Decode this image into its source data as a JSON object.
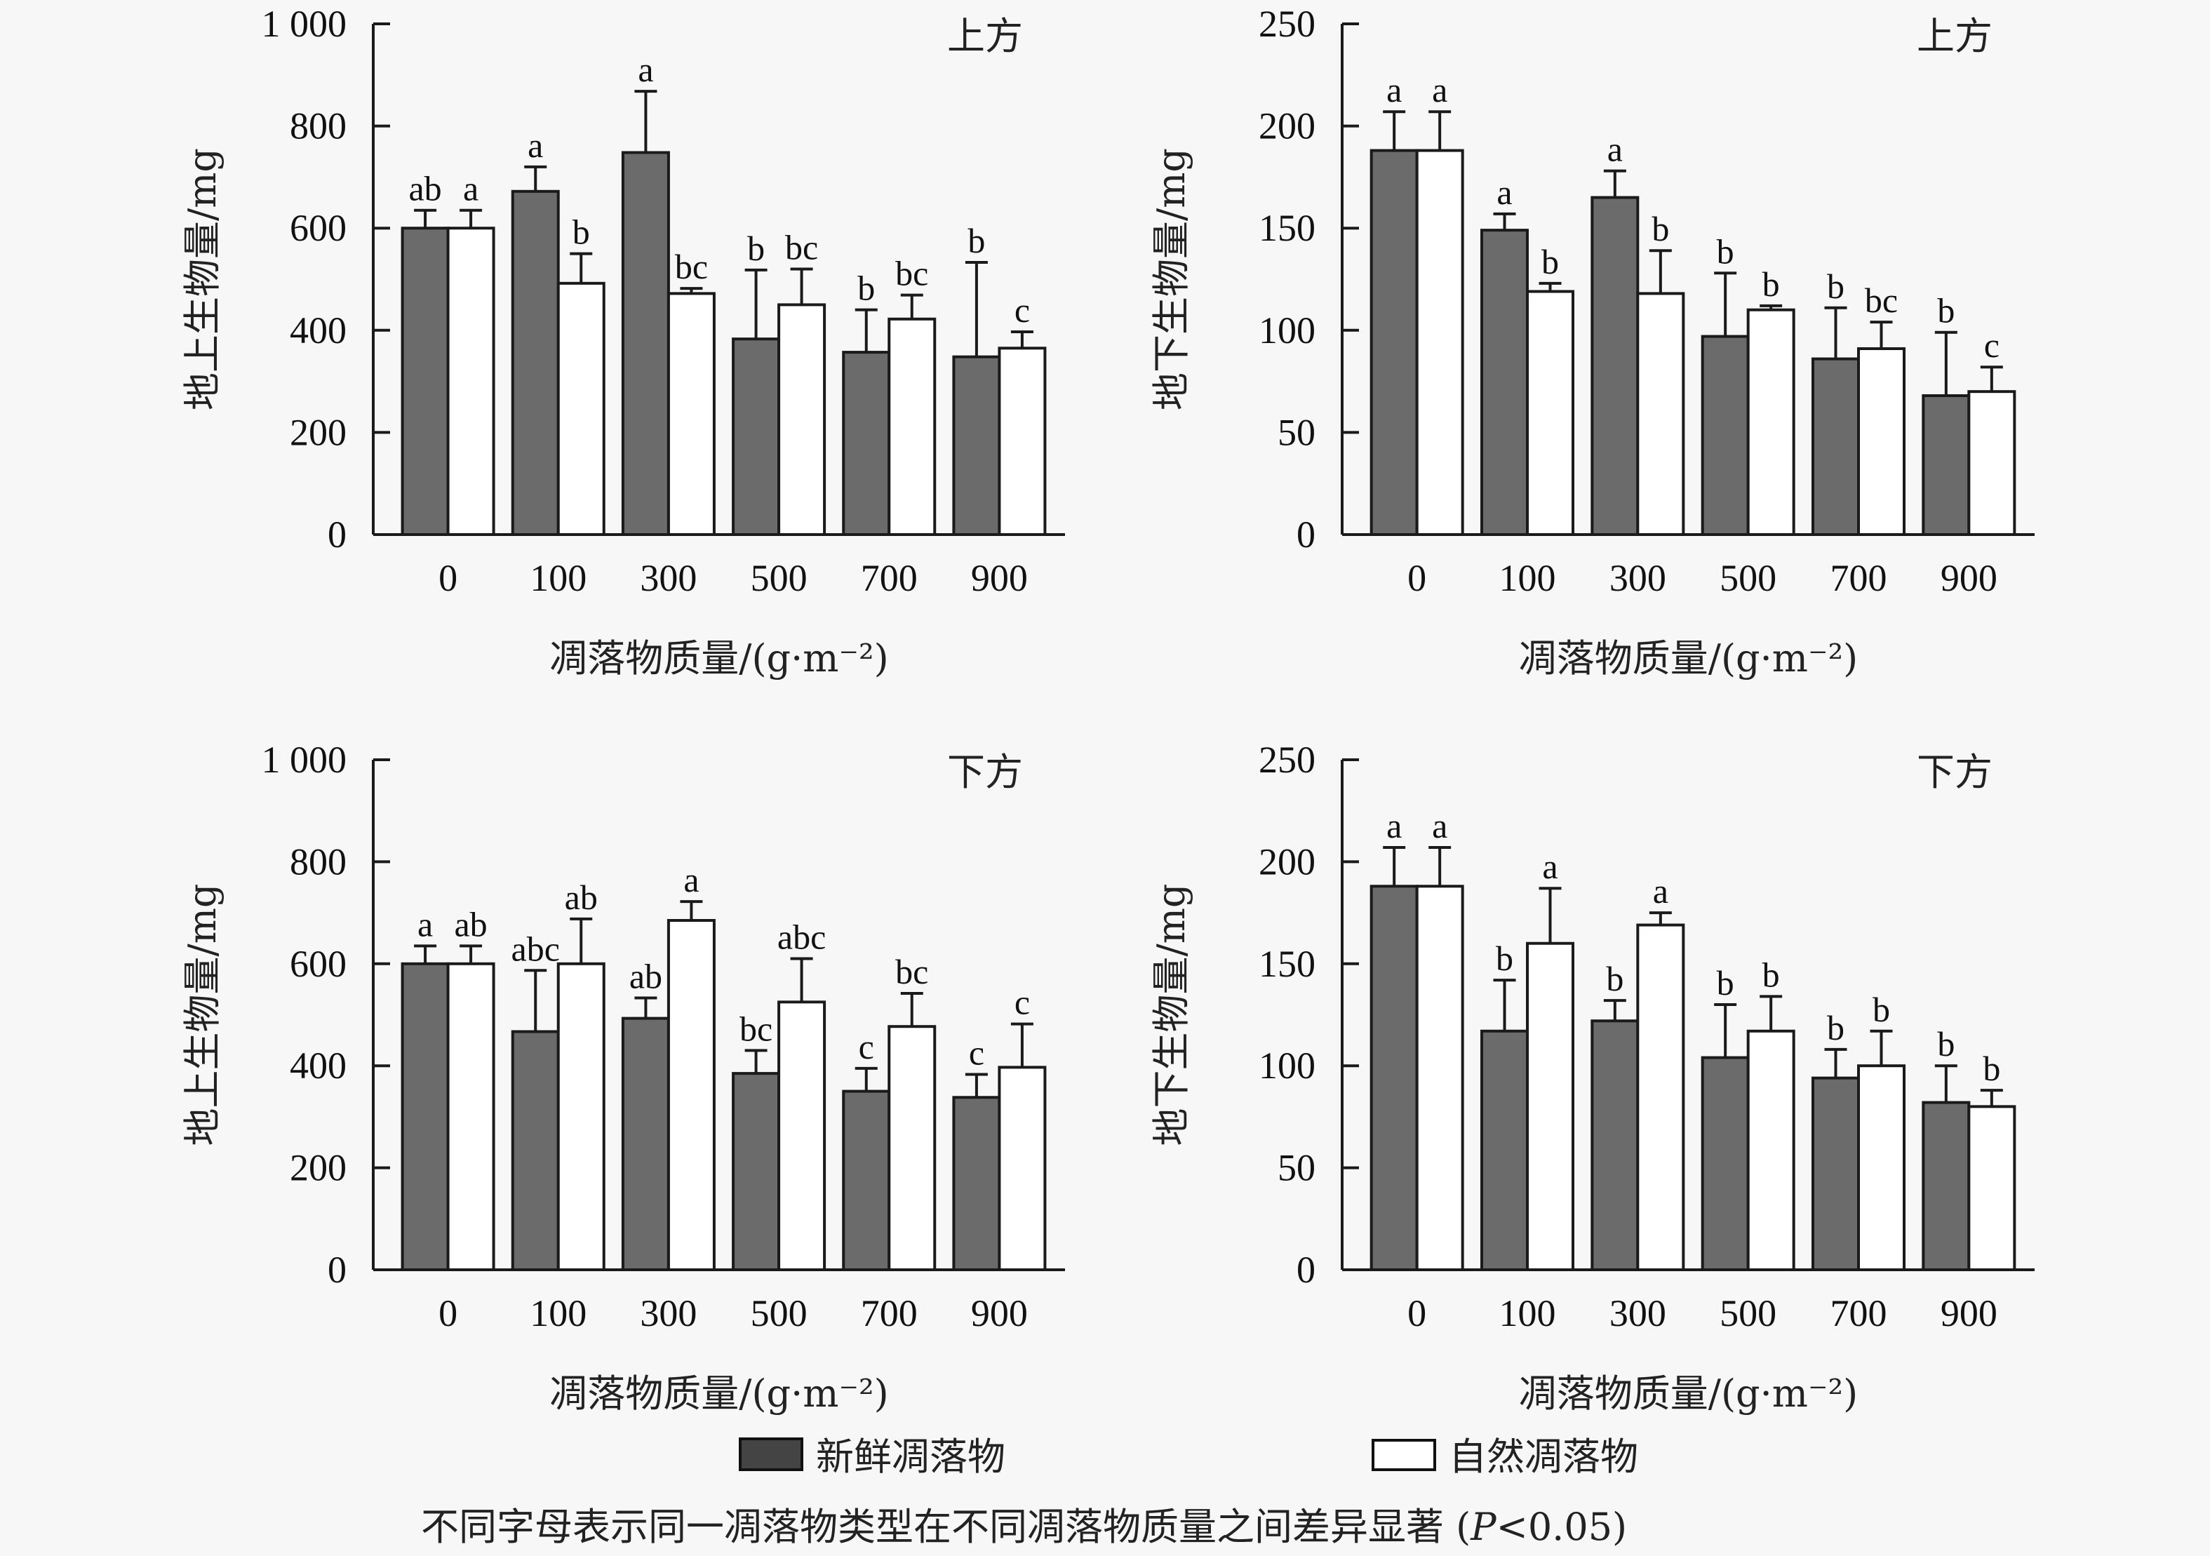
{
  "colors": {
    "fresh": "#6b6b6b",
    "natural": "#ffffff",
    "axis": "#1a1a1a",
    "legend_fresh": "#444444"
  },
  "legend": {
    "fresh_label": "新鲜凋落物",
    "natural_label": "自然凋落物"
  },
  "footnote": {
    "text": "不同字母表示同一凋落物类型在不同凋落物质量之间差异显著 (",
    "p": "P",
    "rest": "<0.05)"
  },
  "chart_data": [
    {
      "id": "above-upper",
      "type": "bar",
      "panel_label": "上方",
      "xlabel": "凋落物质量/(g·m⁻²)",
      "ylabel": "地上生物量/mg",
      "ylim": [
        0,
        1000
      ],
      "yticks": [
        0,
        200,
        400,
        600,
        800,
        1000
      ],
      "ytick_labels": [
        "0",
        "200",
        "400",
        "600",
        "800",
        "1 000"
      ],
      "categories": [
        "0",
        "100",
        "300",
        "500",
        "700",
        "900"
      ],
      "series": [
        {
          "name": "新鲜凋落物",
          "values": [
            600,
            672,
            748,
            383,
            357,
            348
          ],
          "errors": [
            35,
            48,
            120,
            135,
            83,
            185
          ],
          "letters": [
            "ab",
            "a",
            "a",
            "b",
            "b",
            "b"
          ]
        },
        {
          "name": "自然凋落物",
          "values": [
            600,
            492,
            472,
            450,
            422,
            365
          ],
          "errors": [
            35,
            58,
            10,
            70,
            47,
            32
          ],
          "letters": [
            "a",
            "b",
            "bc",
            "bc",
            "bc",
            "c"
          ]
        }
      ]
    },
    {
      "id": "below-upper",
      "type": "bar",
      "panel_label": "上方",
      "xlabel": "凋落物质量/(g·m⁻²)",
      "ylabel": "地下生物量/mg",
      "ylim": [
        0,
        250
      ],
      "yticks": [
        0,
        50,
        100,
        150,
        200,
        250
      ],
      "ytick_labels": [
        "0",
        "50",
        "100",
        "150",
        "200",
        "250"
      ],
      "categories": [
        "0",
        "100",
        "300",
        "500",
        "700",
        "900"
      ],
      "series": [
        {
          "name": "新鲜凋落物",
          "values": [
            188,
            149,
            165,
            97,
            86,
            68
          ],
          "errors": [
            19,
            8,
            13,
            31,
            25,
            31
          ],
          "letters": [
            "a",
            "a",
            "a",
            "b",
            "b",
            "b"
          ]
        },
        {
          "name": "自然凋落物",
          "values": [
            188,
            119,
            118,
            110,
            91,
            70
          ],
          "errors": [
            19,
            4,
            21,
            2,
            13,
            12
          ],
          "letters": [
            "a",
            "b",
            "b",
            "b",
            "bc",
            "c"
          ]
        }
      ]
    },
    {
      "id": "above-lower",
      "type": "bar",
      "panel_label": "下方",
      "xlabel": "凋落物质量/(g·m⁻²)",
      "ylabel": "地上生物量/mg",
      "ylim": [
        0,
        1000
      ],
      "yticks": [
        0,
        200,
        400,
        600,
        800,
        1000
      ],
      "ytick_labels": [
        "0",
        "200",
        "400",
        "600",
        "800",
        "1 000"
      ],
      "categories": [
        "0",
        "100",
        "300",
        "500",
        "700",
        "900"
      ],
      "series": [
        {
          "name": "新鲜凋落物",
          "values": [
            600,
            467,
            493,
            385,
            350,
            338
          ],
          "errors": [
            35,
            120,
            40,
            45,
            45,
            45
          ],
          "letters": [
            "a",
            "abc",
            "ab",
            "bc",
            "c",
            "c"
          ]
        },
        {
          "name": "自然凋落物",
          "values": [
            600,
            600,
            685,
            525,
            477,
            397
          ],
          "errors": [
            35,
            88,
            37,
            85,
            65,
            85
          ],
          "letters": [
            "ab",
            "ab",
            "a",
            "abc",
            "bc",
            "c"
          ]
        }
      ]
    },
    {
      "id": "below-lower",
      "type": "bar",
      "panel_label": "下方",
      "xlabel": "凋落物质量/(g·m⁻²)",
      "ylabel": "地下生物量/mg",
      "ylim": [
        0,
        250
      ],
      "yticks": [
        0,
        50,
        100,
        150,
        200,
        250
      ],
      "ytick_labels": [
        "0",
        "50",
        "100",
        "150",
        "200",
        "250"
      ],
      "categories": [
        "0",
        "100",
        "300",
        "500",
        "700",
        "900"
      ],
      "series": [
        {
          "name": "新鲜凋落物",
          "values": [
            188,
            117,
            122,
            104,
            94,
            82
          ],
          "errors": [
            19,
            25,
            10,
            26,
            14,
            18
          ],
          "letters": [
            "a",
            "b",
            "b",
            "b",
            "b",
            "b"
          ]
        },
        {
          "name": "自然凋落物",
          "values": [
            188,
            160,
            169,
            117,
            100,
            80
          ],
          "errors": [
            19,
            27,
            6,
            17,
            17,
            8
          ],
          "letters": [
            "a",
            "a",
            "a",
            "b",
            "b",
            "b"
          ]
        }
      ]
    }
  ]
}
